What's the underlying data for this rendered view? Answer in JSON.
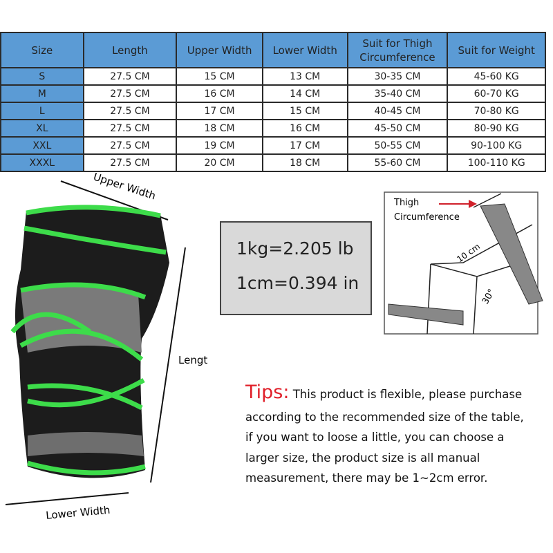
{
  "table": {
    "headers": [
      "Size",
      "Length",
      "Upper Width",
      "Lower Width",
      "Suit for Thigh Circumference",
      "Suit for Weight"
    ],
    "rows": [
      [
        "S",
        "27.5 CM",
        "15 CM",
        "13 CM",
        "30-35 CM",
        "45-60 KG"
      ],
      [
        "M",
        "27.5 CM",
        "16 CM",
        "14 CM",
        "35-40 CM",
        "60-70 KG"
      ],
      [
        "L",
        "27.5 CM",
        "17 CM",
        "15 CM",
        "40-45 CM",
        "70-80 KG"
      ],
      [
        "XL",
        "27.5 CM",
        "18 CM",
        "16 CM",
        "45-50 CM",
        "80-90 KG"
      ],
      [
        "XXL",
        "27.5 CM",
        "19 CM",
        "17 CM",
        "50-55 CM",
        "90-100 KG"
      ],
      [
        "XXXL",
        "27.5 CM",
        "20 CM",
        "18 CM",
        "55-60 CM",
        "100-110 KG"
      ]
    ]
  },
  "colors": {
    "header": "#5b9bd5",
    "accent_green": "#3ddc4a",
    "tips_red": "#e0202a"
  },
  "labels": {
    "upper_width": "Upper Width",
    "length": "Length",
    "lower_width": "Lower Width"
  },
  "conversion": {
    "kg": "1kg=2.205 lb",
    "cm": "1cm=0.394 in"
  },
  "diagram": {
    "thigh": "Thigh",
    "circumference": "Circumference",
    "distance": "10 cm",
    "angle": "30°"
  },
  "tips": {
    "title": "Tips:",
    "lines": [
      "This product is flexible, please purchase",
      "according to the recommended size of the table,",
      "if you want to loose a little, you can choose a",
      "larger size, the product size is all manual",
      "measurement, there may be 1~2cm error."
    ]
  }
}
